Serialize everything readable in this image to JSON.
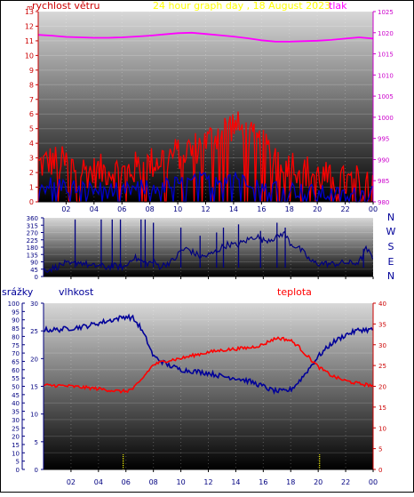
{
  "header": {
    "wind_label": "rychlost větru",
    "title": "24 hour graph day , 18 August 2023",
    "pressure_label": "tlak"
  },
  "bottom_header": {
    "rain_label": "srážky",
    "humidity_label": "vlhkost",
    "temp_label": "teplota"
  },
  "colors": {
    "wind_label": "#cc0000",
    "title": "#ffff00",
    "pressure": "#ff00ff",
    "wind_speed": "#ff0000",
    "wind_avg": "#0000cc",
    "direction": "#000080",
    "direction_labels": "#000099",
    "humidity": "#000099",
    "temperature": "#ff0000",
    "rain": "#ffff00",
    "background_top": "#d8d8d8",
    "background_bottom": "#000000"
  },
  "chart_data": [
    {
      "id": "wind-pressure",
      "type": "line",
      "title": "24 hour graph day , 18 August 2023",
      "x_ticks": [
        "02",
        "04",
        "06",
        "08",
        "10",
        "12",
        "14",
        "16",
        "18",
        "20",
        "22",
        "00"
      ],
      "x_range": [
        0,
        24
      ],
      "y_left": {
        "label": "rychlost větru",
        "range": [
          0,
          13
        ],
        "ticks": [
          0,
          1,
          2,
          3,
          4,
          5,
          6,
          7,
          8,
          9,
          10,
          11,
          12,
          13
        ],
        "top_label": "m"
      },
      "y_right": {
        "label": "tlak",
        "range": [
          980,
          1025
        ],
        "ticks": [
          980,
          985,
          990,
          995,
          1000,
          1005,
          1010,
          1015,
          1020,
          1025
        ]
      },
      "series": [
        {
          "name": "tlak",
          "axis": "right",
          "x": [
            0,
            1,
            2,
            3,
            4,
            5,
            6,
            7,
            8,
            9,
            10,
            11,
            12,
            13,
            14,
            15,
            16,
            17,
            18,
            19,
            20,
            21,
            22,
            23,
            24
          ],
          "values": [
            1019.5,
            1019.3,
            1019.0,
            1018.9,
            1018.8,
            1018.8,
            1018.9,
            1019.1,
            1019.3,
            1019.6,
            1019.9,
            1020.0,
            1019.7,
            1019.4,
            1019.1,
            1018.7,
            1018.2,
            1017.9,
            1017.9,
            1018.0,
            1018.1,
            1018.3,
            1018.6,
            1018.9,
            1018.6
          ]
        },
        {
          "name": "gust",
          "axis": "left",
          "x": [
            0,
            1,
            2,
            3,
            4,
            5,
            6,
            7,
            8,
            9,
            10,
            11,
            12,
            13,
            14,
            15,
            16,
            17,
            18,
            19,
            20,
            21,
            22,
            23,
            24
          ],
          "values": [
            2.5,
            2.8,
            2.6,
            2.2,
            2.0,
            2.2,
            2.0,
            2.3,
            2.6,
            3.0,
            3.3,
            3.6,
            4.0,
            4.8,
            5.3,
            4.5,
            3.8,
            3.3,
            2.7,
            2.2,
            1.8,
            1.5,
            1.3,
            1.4,
            2.2
          ],
          "jitter": 1.2
        },
        {
          "name": "average",
          "axis": "left",
          "x": [
            0,
            1,
            2,
            3,
            4,
            5,
            6,
            7,
            8,
            9,
            10,
            11,
            12,
            13,
            14,
            15,
            16,
            17,
            18,
            19,
            20,
            21,
            22,
            23,
            24
          ],
          "values": [
            1.0,
            1.2,
            1.1,
            0.9,
            0.8,
            0.8,
            0.7,
            0.9,
            1.0,
            1.1,
            1.2,
            1.3,
            1.5,
            1.7,
            1.9,
            1.6,
            1.3,
            1.1,
            0.9,
            0.7,
            0.6,
            0.5,
            0.4,
            0.5,
            0.8
          ],
          "jitter": 0.6
        }
      ]
    },
    {
      "id": "wind-direction",
      "type": "line",
      "x_ticks": [
        "02",
        "04",
        "06",
        "08",
        "10",
        "12",
        "14",
        "16",
        "18",
        "20",
        "22",
        "00"
      ],
      "x_range": [
        0,
        24
      ],
      "y_left": {
        "range": [
          0,
          360
        ],
        "ticks": [
          0,
          45,
          90,
          135,
          180,
          225,
          270,
          315,
          360
        ]
      },
      "direction_labels": [
        "N",
        "W",
        "S",
        "E",
        "N"
      ],
      "series": [
        {
          "name": "směr",
          "x": [
            0,
            0.5,
            1,
            1.5,
            2,
            2.5,
            3,
            3.5,
            4,
            4.5,
            5,
            5.5,
            6,
            6.5,
            7,
            7.5,
            8,
            8.5,
            9,
            9.5,
            10,
            10.5,
            11,
            11.5,
            12,
            12.5,
            13,
            13.5,
            14,
            14.5,
            15,
            15.5,
            16,
            16.5,
            17,
            17.5,
            18,
            18.5,
            19,
            19.5,
            20,
            20.5,
            21,
            21.5,
            22,
            22.5,
            23,
            23.5,
            24
          ],
          "values": [
            40,
            45,
            60,
            80,
            70,
            90,
            80,
            60,
            70,
            55,
            65,
            60,
            60,
            120,
            100,
            80,
            90,
            60,
            80,
            100,
            160,
            170,
            140,
            120,
            130,
            150,
            180,
            200,
            190,
            210,
            230,
            250,
            220,
            230,
            240,
            270,
            200,
            180,
            140,
            90,
            80,
            80,
            75,
            80,
            85,
            80,
            90,
            170,
            110
          ],
          "spikes": [
            [
              2.3,
              350
            ],
            [
              4.2,
              350
            ],
            [
              5.0,
              350
            ],
            [
              5.6,
              350
            ],
            [
              7.1,
              350
            ],
            [
              7.4,
              350
            ],
            [
              8.0,
              330
            ],
            [
              10.0,
              300
            ],
            [
              11.4,
              250
            ],
            [
              12.6,
              270
            ],
            [
              13.1,
              300
            ],
            [
              14.2,
              320
            ],
            [
              15.8,
              280
            ],
            [
              17.0,
              330
            ],
            [
              17.6,
              300
            ],
            [
              23.3,
              170
            ]
          ]
        }
      ]
    },
    {
      "id": "humidity-temp-rain",
      "type": "line",
      "x_ticks": [
        "02",
        "04",
        "06",
        "08",
        "10",
        "12",
        "14",
        "16",
        "18",
        "20",
        "22",
        "00"
      ],
      "x_range": [
        0,
        24
      ],
      "y_rain": {
        "label": "srážky",
        "range": [
          0,
          100
        ],
        "ticks": [
          0,
          5,
          10,
          15,
          20,
          25,
          30,
          35,
          40,
          45,
          50,
          55,
          60,
          65,
          70,
          75,
          80,
          85,
          90,
          95,
          100
        ]
      },
      "y_humidity": {
        "label": "vlhkost",
        "range": [
          0,
          30
        ],
        "ticks": [
          0,
          5,
          10,
          15,
          20,
          25,
          30
        ]
      },
      "y_temp": {
        "label": "teplota",
        "range": [
          0,
          40
        ],
        "ticks": [
          0,
          5,
          10,
          15,
          20,
          25,
          30,
          35,
          40
        ]
      },
      "series": [
        {
          "name": "vlhkost",
          "axis": "rain_scale",
          "x": [
            0,
            1,
            2,
            3,
            4,
            5,
            5.5,
            6,
            6.5,
            7,
            7.5,
            8,
            9,
            10,
            11,
            12,
            13,
            14,
            15,
            16,
            16.5,
            17,
            17.5,
            18,
            18.5,
            19,
            20,
            21,
            22,
            23,
            24
          ],
          "values": [
            84,
            84,
            85,
            86,
            88,
            90,
            91,
            92,
            91,
            86,
            78,
            68,
            63,
            60,
            59,
            58,
            56,
            55,
            53,
            50,
            48,
            47,
            47,
            48,
            52,
            57,
            68,
            76,
            81,
            84,
            84
          ],
          "jitter": 1.5
        },
        {
          "name": "teplota",
          "axis": "temp",
          "x": [
            0,
            1,
            2,
            3,
            4,
            5,
            5.5,
            6,
            6.5,
            7,
            7.5,
            8,
            9,
            10,
            11,
            12,
            13,
            14,
            15,
            16,
            16.5,
            17,
            17.5,
            18,
            18.5,
            19,
            20,
            21,
            22,
            23,
            24
          ],
          "values": [
            20.2,
            20.2,
            20.0,
            19.7,
            19.4,
            19.0,
            18.8,
            18.8,
            19.4,
            21.0,
            23.2,
            25.2,
            26.2,
            26.7,
            27.5,
            28.2,
            28.7,
            29.0,
            29.3,
            30.0,
            31.0,
            31.6,
            31.4,
            31.0,
            29.8,
            28.0,
            24.7,
            22.5,
            21.3,
            20.6,
            20.2
          ],
          "jitter": 0.4
        },
        {
          "name": "srážky",
          "axis": "rain_scale",
          "type": "bar",
          "x": [
            5.8,
            20.1
          ],
          "values": [
            9,
            9
          ]
        }
      ]
    }
  ]
}
